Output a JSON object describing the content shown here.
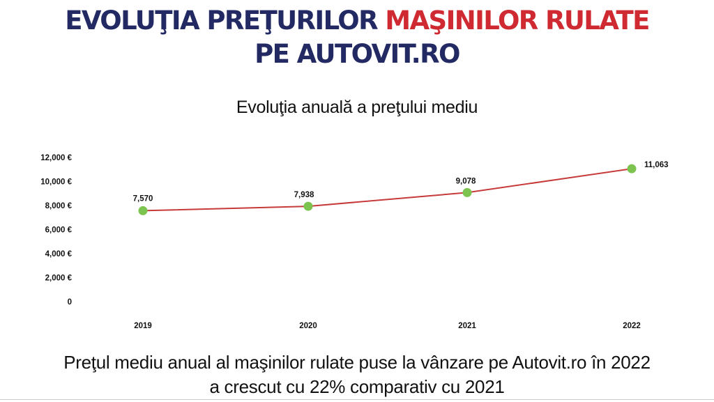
{
  "headline": {
    "line1_part1": "EVOLUŢIA PREŢURILOR ",
    "line1_part2": "MAŞINILOR RULATE",
    "line2": "PE AUTOVIT.RO"
  },
  "colors": {
    "navy": "#232a63",
    "red": "#cf2a32",
    "line": "#c73a3a",
    "marker": "#7cc44f"
  },
  "chart_data": {
    "type": "line",
    "title": "Evoluţia anuală a preţului mediu",
    "categories": [
      "2019",
      "2020",
      "2021",
      "2022"
    ],
    "series": [
      {
        "values": [
          7570,
          7938,
          9078,
          11063
        ]
      }
    ],
    "data_labels": [
      "7,570",
      "7,938",
      "9,078",
      "11,063"
    ],
    "yticks": [
      {
        "value": 0,
        "label": "0"
      },
      {
        "value": 2000,
        "label": "2,000 €"
      },
      {
        "value": 4000,
        "label": "4,000 €"
      },
      {
        "value": 6000,
        "label": "6,000 €"
      },
      {
        "value": 8000,
        "label": "8,000 €"
      },
      {
        "value": 10000,
        "label": "10,000 €"
      },
      {
        "value": 12000,
        "label": "12,000 €"
      }
    ],
    "ylim": [
      0,
      12000
    ],
    "grid": false,
    "legend": "none",
    "xlabel": "",
    "ylabel": ""
  },
  "caption": {
    "line1": "Preţul mediu anual al maşinilor rulate puse la vânzare pe Autovit.ro în 2022",
    "line2": "a crescut cu 22% comparativ cu 2021"
  }
}
